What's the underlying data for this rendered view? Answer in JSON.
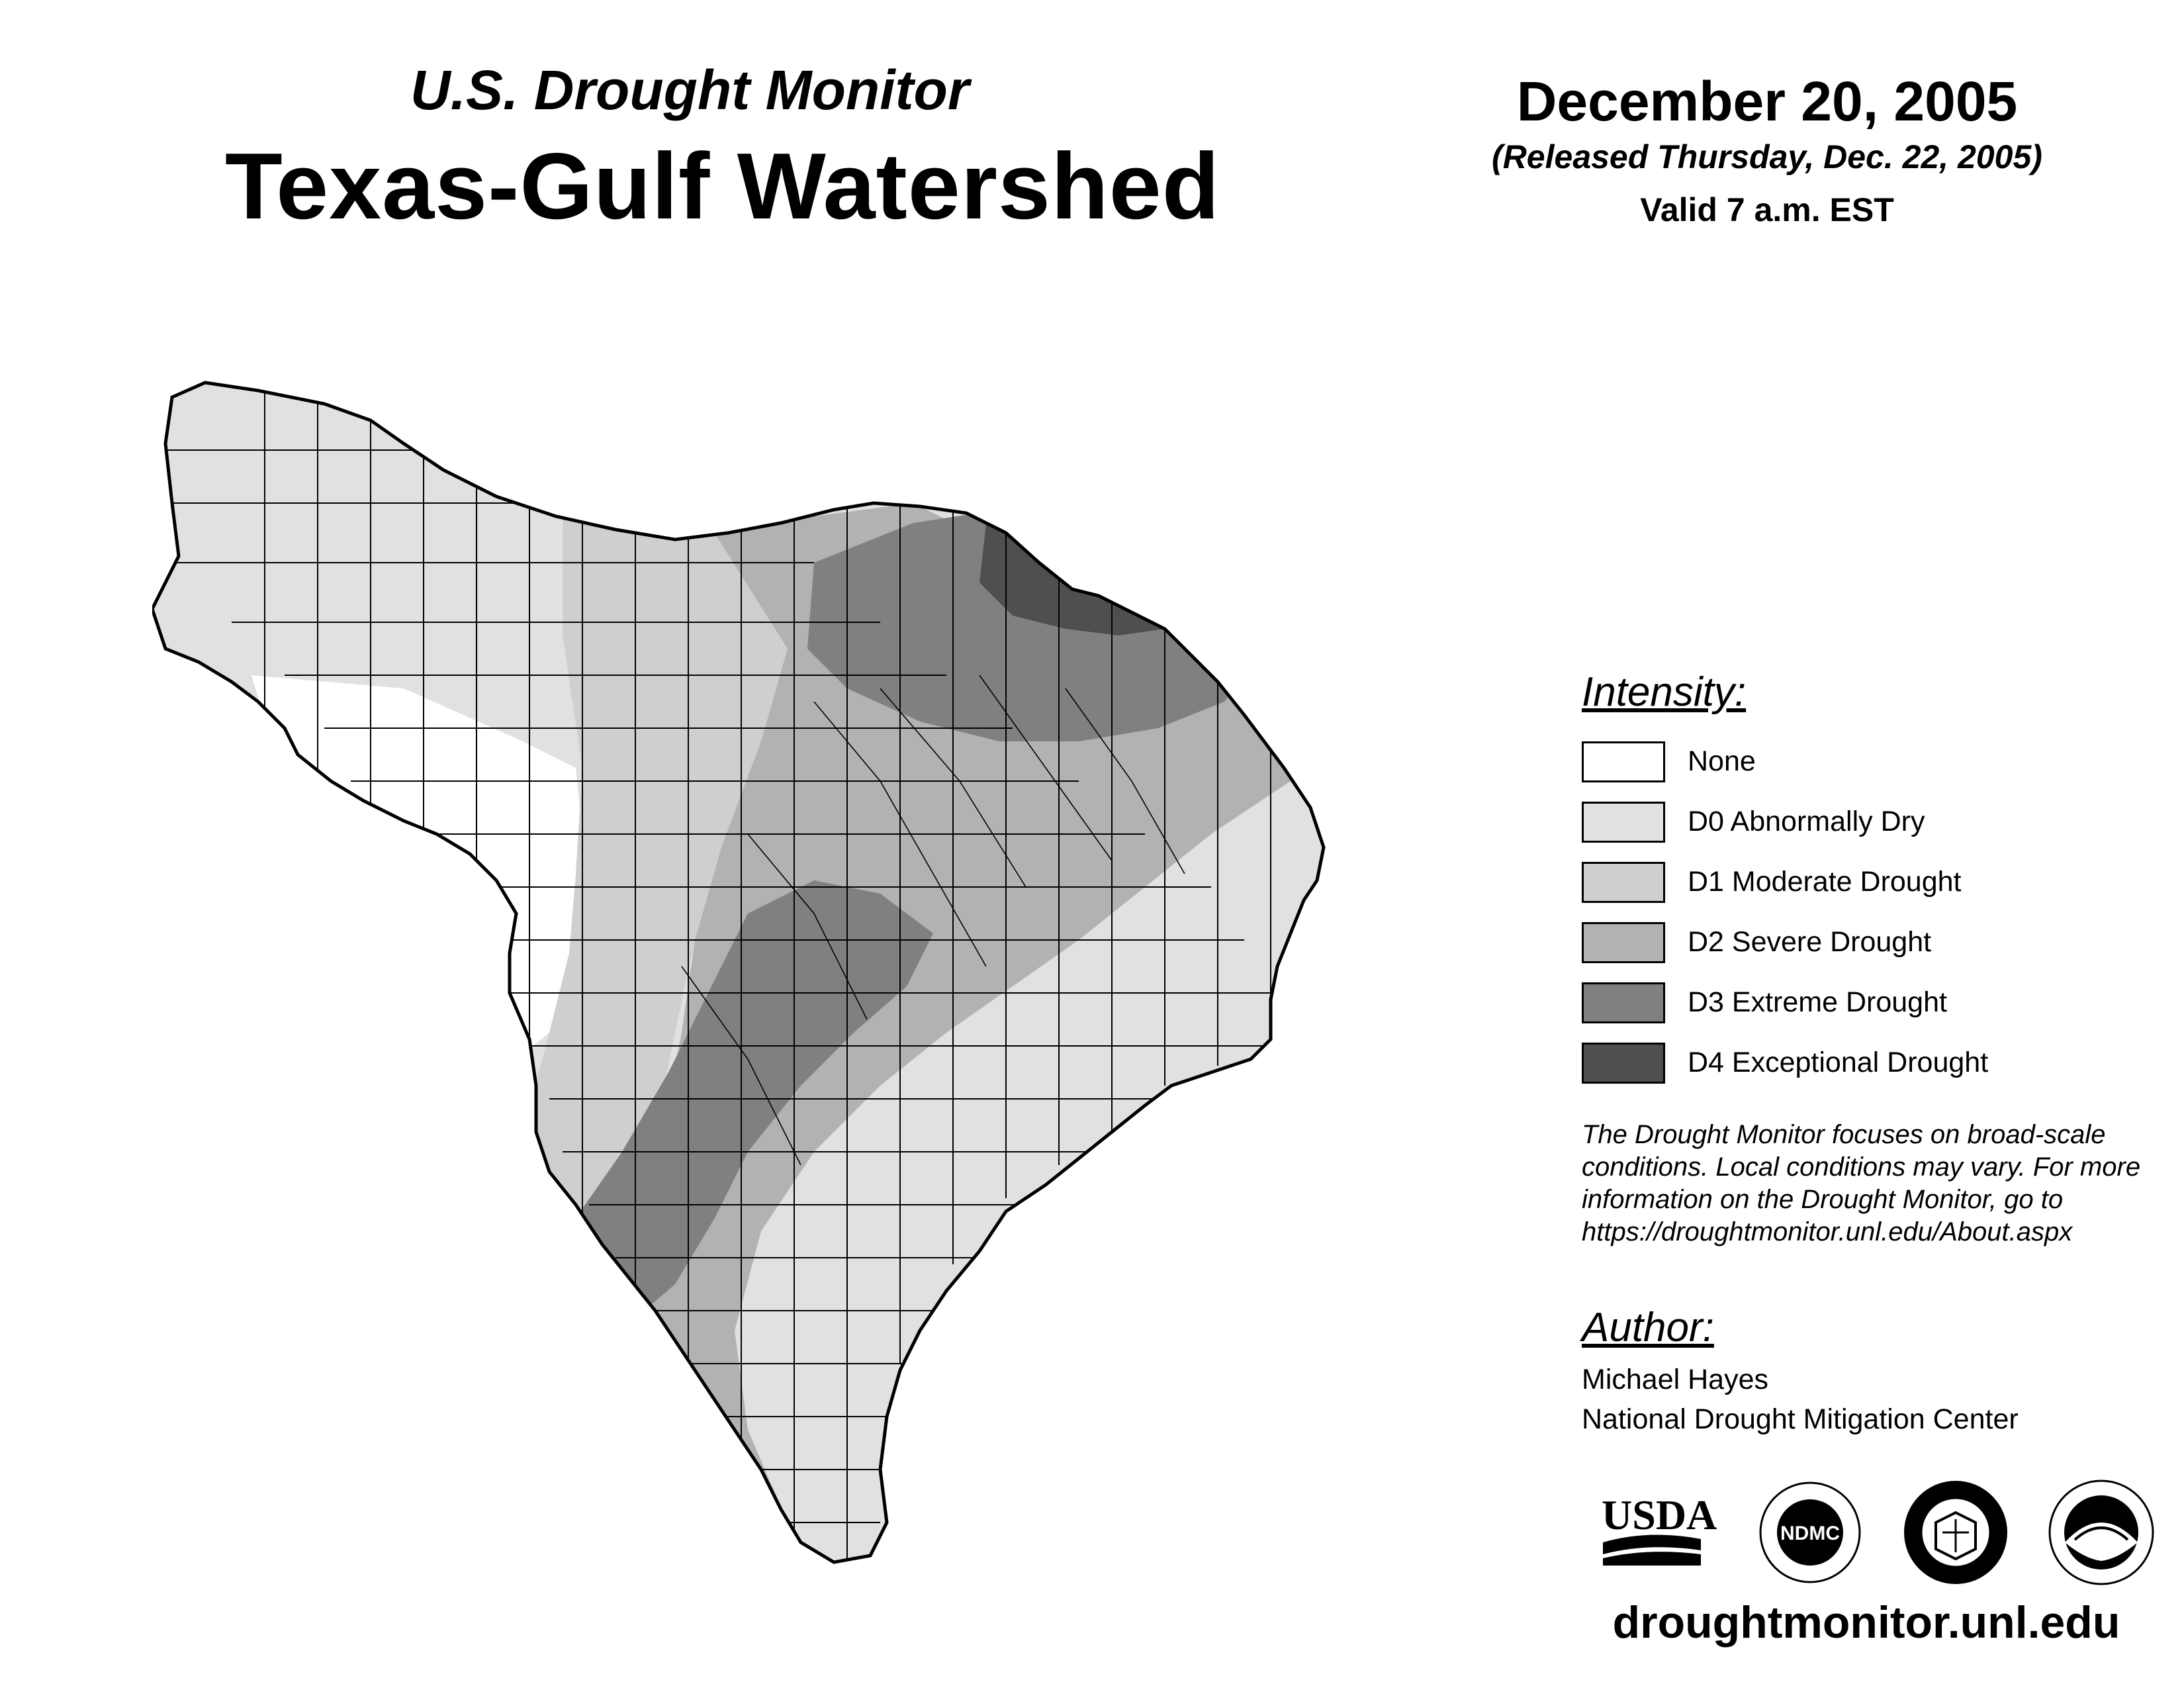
{
  "header": {
    "supertitle": "U.S. Drought Monitor",
    "title": "Texas-Gulf Watershed",
    "date": "December 20, 2005",
    "released": "(Released Thursday, Dec. 22, 2005)",
    "valid": "Valid 7 a.m. EST"
  },
  "legend": {
    "heading": "Intensity:",
    "items": [
      {
        "label": "None",
        "color": "#ffffff"
      },
      {
        "label": "D0 Abnormally Dry",
        "color": "#e1e1e1"
      },
      {
        "label": "D1 Moderate Drought",
        "color": "#cfcfcf"
      },
      {
        "label": "D2 Severe Drought",
        "color": "#b2b2b2"
      },
      {
        "label": "D3 Extreme Drought",
        "color": "#808080"
      },
      {
        "label": "D4 Exceptional Drought",
        "color": "#4f4f4f"
      }
    ]
  },
  "disclaimer": {
    "line1": "The Drought Monitor focuses on broad-scale",
    "line2": "conditions. Local conditions may vary. For more",
    "line3": "information on the Drought Monitor, go to",
    "line4": "https://droughtmonitor.unl.edu/About.aspx"
  },
  "author": {
    "heading": "Author:",
    "name": "Michael Hayes",
    "organization": "National Drought Mitigation Center"
  },
  "logos": {
    "usda": "USDA",
    "ndmc": "NDMC"
  },
  "site_url": "droughtmonitor.unl.edu"
}
